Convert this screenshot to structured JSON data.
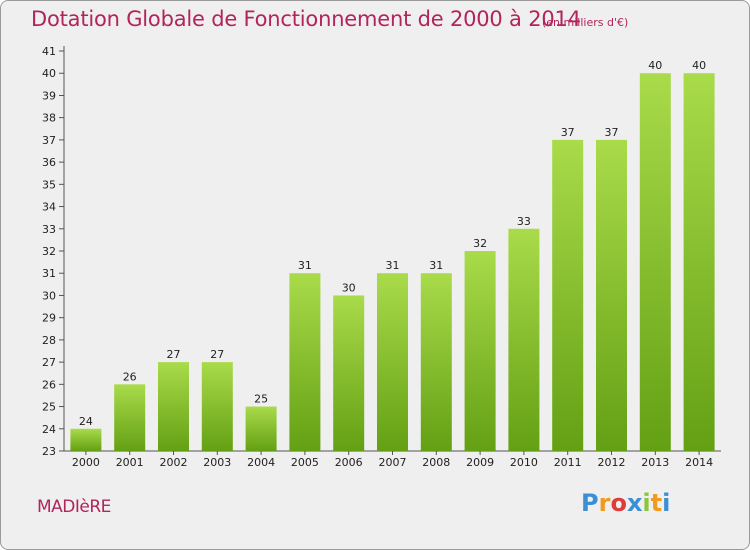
{
  "chart_data": {
    "type": "bar",
    "title": "Dotation Globale de Fonctionnement de 2000 à 2014",
    "subtitle": "(en milliers d'€)",
    "categories": [
      "2000",
      "2001",
      "2002",
      "2003",
      "2004",
      "2005",
      "2006",
      "2007",
      "2008",
      "2009",
      "2010",
      "2011",
      "2012",
      "2013",
      "2014"
    ],
    "values": [
      24,
      26,
      27,
      27,
      25,
      31,
      30,
      31,
      31,
      32,
      33,
      37,
      37,
      40,
      40
    ],
    "ylim": [
      23,
      41
    ],
    "yticks": [
      23,
      24,
      25,
      26,
      27,
      28,
      29,
      30,
      31,
      32,
      33,
      34,
      35,
      36,
      37,
      38,
      39,
      40,
      41
    ],
    "xlabel": "",
    "ylabel": "",
    "grid": false,
    "bar_color_light": "#a9db4a",
    "bar_color_dark": "#64a014"
  },
  "footer": {
    "commune": "MADIèRE"
  },
  "brand": {
    "letters": [
      "P",
      "r",
      "o",
      "x",
      "i",
      "t",
      "i"
    ],
    "colors": [
      "#3b8fd6",
      "#f29a1d",
      "#e03a3a",
      "#3b8fd6",
      "#8cc63f",
      "#f29a1d",
      "#3b8fd6"
    ]
  }
}
